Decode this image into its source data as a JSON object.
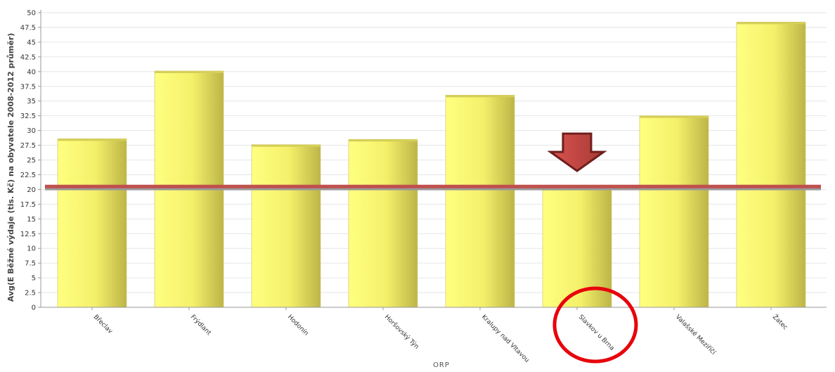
{
  "chart_data": {
    "type": "bar",
    "title": "",
    "ylabel": "Avg(E Běžné výdaje (tis. Kč) na obyvatele 2008-2012 průměr)",
    "xlabel": "ORP",
    "ylim": [
      0,
      50
    ],
    "ytick_step": 2.5,
    "yticks": [
      "0",
      "2.5",
      "5",
      "7.5",
      "10",
      "12.5",
      "15",
      "17.5",
      "20",
      "22.5",
      "25",
      "27.5",
      "30",
      "32.5",
      "35",
      "37.5",
      "40",
      "42.5",
      "45",
      "47.5",
      "50"
    ],
    "grid": true,
    "categories": [
      "Břeclav",
      "Frýdlant",
      "Hodonín",
      "Horšovský Týn",
      "Kralupy nad Vltavou",
      "Slavkov u Brna",
      "Valašské Meziříčí",
      "Žatec"
    ],
    "values": [
      28.6,
      40.1,
      27.6,
      28.5,
      36.0,
      20.2,
      32.5,
      48.4
    ],
    "reference_lines": [
      {
        "value": 20.5,
        "color": "#c0504d"
      },
      {
        "value": 20.1,
        "color": "#999999"
      }
    ],
    "annotations": [
      {
        "type": "down-arrow",
        "target_category": "Slavkov u Brna",
        "color": "#c0504d"
      },
      {
        "type": "circle",
        "target_category": "Slavkov u Brna",
        "color": "#e8000b"
      }
    ],
    "colors": {
      "bar_light": "#ffff80",
      "bar_dark": "#b8b040",
      "grid": "#e6e6e6",
      "axis": "#999999"
    }
  }
}
